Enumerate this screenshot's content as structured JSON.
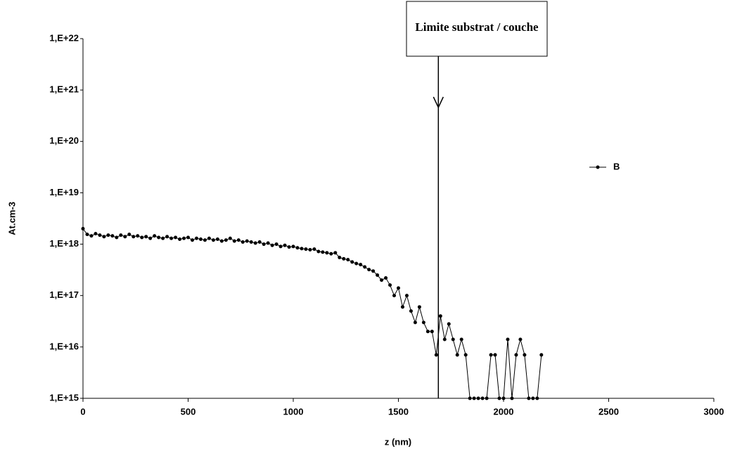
{
  "chart_data": {
    "type": "line",
    "xlabel": "z (nm)",
    "ylabel": "At.cm-3",
    "log_y": true,
    "grid": false,
    "legend": "right",
    "annotation": {
      "text": "Limite substrat / couche",
      "x": 1690
    },
    "x": [
      0,
      20,
      40,
      60,
      80,
      100,
      120,
      140,
      160,
      180,
      200,
      220,
      240,
      260,
      280,
      300,
      320,
      340,
      360,
      380,
      400,
      420,
      440,
      460,
      480,
      500,
      520,
      540,
      560,
      580,
      600,
      620,
      640,
      660,
      680,
      700,
      720,
      740,
      760,
      780,
      800,
      820,
      840,
      860,
      880,
      900,
      920,
      940,
      960,
      980,
      1000,
      1020,
      1040,
      1060,
      1080,
      1100,
      1120,
      1140,
      1160,
      1180,
      1200,
      1220,
      1240,
      1260,
      1280,
      1300,
      1320,
      1340,
      1360,
      1380,
      1400,
      1420,
      1440,
      1460,
      1480,
      1500,
      1520,
      1540,
      1560,
      1580,
      1600,
      1620,
      1640,
      1660,
      1680,
      1700,
      1720,
      1740,
      1760,
      1780,
      1800,
      1820,
      1840,
      1860,
      1880,
      1900,
      1920,
      1940,
      1960,
      1980,
      2000,
      2020,
      2040,
      2060,
      2080,
      2100,
      2120,
      2140,
      2160,
      2180
    ],
    "series": [
      {
        "name": "B",
        "color": "#000000",
        "values": [
          2e+18,
          1.55e+18,
          1.45e+18,
          1.6e+18,
          1.5e+18,
          1.4e+18,
          1.5e+18,
          1.45e+18,
          1.35e+18,
          1.5e+18,
          1.4e+18,
          1.55e+18,
          1.4e+18,
          1.45e+18,
          1.35e+18,
          1.4e+18,
          1.3e+18,
          1.45e+18,
          1.35e+18,
          1.3e+18,
          1.4e+18,
          1.3e+18,
          1.35e+18,
          1.25e+18,
          1.3e+18,
          1.35e+18,
          1.2e+18,
          1.3e+18,
          1.25e+18,
          1.2e+18,
          1.3e+18,
          1.2e+18,
          1.25e+18,
          1.15e+18,
          1.2e+18,
          1.3e+18,
          1.15e+18,
          1.2e+18,
          1.1e+18,
          1.15e+18,
          1.1e+18,
          1.05e+18,
          1.1e+18,
          1e+18,
          1.05e+18,
          9.5e+17,
          1e+18,
          9e+17,
          9.5e+17,
          8.8e+17,
          9e+17,
          8.5e+17,
          8.2e+17,
          8e+17,
          7.8e+17,
          8e+17,
          7.2e+17,
          7e+17,
          6.8e+17,
          6.5e+17,
          6.8e+17,
          5.5e+17,
          5.2e+17,
          5e+17,
          4.5e+17,
          4.2e+17,
          4e+17,
          3.6e+17,
          3.2e+17,
          3e+17,
          2.5e+17,
          2e+17,
          2.2e+17,
          1.6e+17,
          1e+17,
          1.4e+17,
          6e+16,
          1e+17,
          5e+16,
          3e+16,
          6e+16,
          3e+16,
          2e+16,
          2e+16,
          7000000000000000.0,
          4e+16,
          1.4e+16,
          2.8e+16,
          1.4e+16,
          7000000000000000.0,
          1.4e+16,
          7000000000000000.0,
          0,
          0,
          0,
          0,
          0,
          7000000000000000.0,
          7000000000000000.0,
          0,
          0,
          1.4e+16,
          0,
          7000000000000000.0,
          1.4e+16,
          7000000000000000.0,
          0,
          0,
          0,
          7000000000000000.0
        ]
      }
    ],
    "xlim": [
      0,
      3000
    ],
    "xticks": [
      0,
      500,
      1000,
      1500,
      2000,
      2500,
      3000
    ],
    "ylim": [
      1000000000000000.0,
      1e+22
    ],
    "yticks": [
      {
        "value": 1000000000000000.0,
        "label": "1,E+15"
      },
      {
        "value": 1e+16,
        "label": "1,E+16"
      },
      {
        "value": 1e+17,
        "label": "1,E+17"
      },
      {
        "value": 1e+18,
        "label": "1,E+18"
      },
      {
        "value": 1e+19,
        "label": "1,E+19"
      },
      {
        "value": 1e+20,
        "label": "1,E+20"
      },
      {
        "value": 1e+21,
        "label": "1,E+21"
      },
      {
        "value": 1e+22,
        "label": "1,E+22"
      }
    ]
  }
}
